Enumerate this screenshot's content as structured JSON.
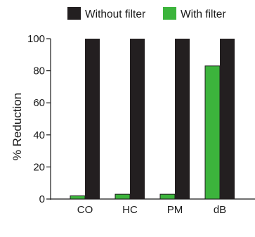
{
  "chart_data": {
    "type": "bar",
    "categories": [
      "CO",
      "HC",
      "PM",
      "dB"
    ],
    "series": [
      {
        "name": "With filter",
        "color": "#3cb43c",
        "values": [
          2,
          3,
          3,
          83
        ]
      },
      {
        "name": "Without filter",
        "color": "#231f20",
        "values": [
          100,
          100,
          100,
          100
        ]
      }
    ],
    "legend_order": [
      "Without filter",
      "With filter"
    ],
    "legend_placement": "top",
    "ylabel": "% Reduction",
    "xlabel": "",
    "ylim": [
      0,
      100
    ],
    "yticks": [
      0,
      20,
      40,
      60,
      80,
      100
    ],
    "grid": false
  }
}
